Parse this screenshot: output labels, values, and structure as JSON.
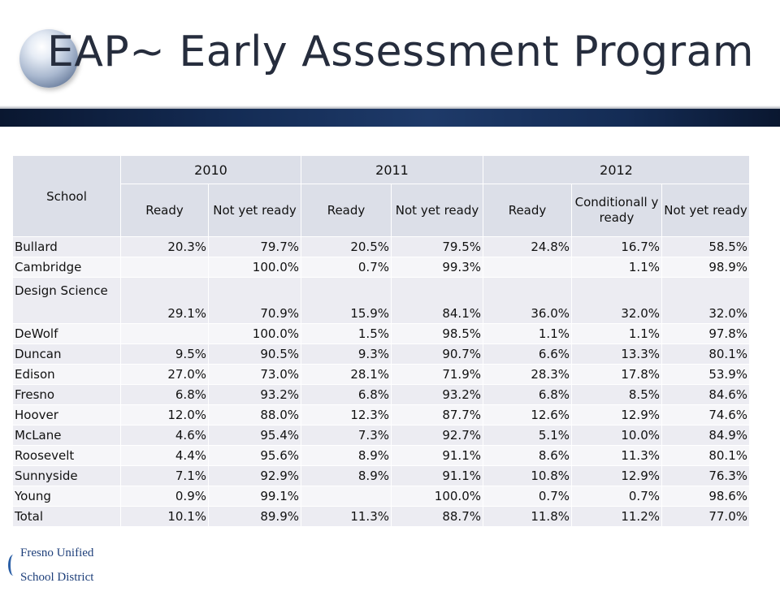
{
  "title": "EAP~ Early Assessment Program",
  "table": {
    "school_header": "School",
    "years": [
      "2010",
      "2011",
      "2012"
    ],
    "subheaders": [
      "Ready",
      "Not yet ready",
      "Ready",
      "Not yet ready",
      "Ready",
      "Conditionall y ready",
      "Not yet ready"
    ],
    "rows": [
      {
        "school": "Bullard",
        "values": [
          "20.3%",
          "79.7%",
          "20.5%",
          "79.5%",
          "24.8%",
          "16.7%",
          "58.5%"
        ]
      },
      {
        "school": "Cambridge",
        "values": [
          "",
          "100.0%",
          "0.7%",
          "99.3%",
          "",
          "1.1%",
          "98.9%"
        ]
      },
      {
        "school": "Design Science",
        "values": [
          "29.1%",
          "70.9%",
          "15.9%",
          "84.1%",
          "36.0%",
          "32.0%",
          "32.0%"
        ]
      },
      {
        "school": "DeWolf",
        "values": [
          "",
          "100.0%",
          "1.5%",
          "98.5%",
          "1.1%",
          "1.1%",
          "97.8%"
        ]
      },
      {
        "school": "Duncan",
        "values": [
          "9.5%",
          "90.5%",
          "9.3%",
          "90.7%",
          "6.6%",
          "13.3%",
          "80.1%"
        ]
      },
      {
        "school": "Edison",
        "values": [
          "27.0%",
          "73.0%",
          "28.1%",
          "71.9%",
          "28.3%",
          "17.8%",
          "53.9%"
        ]
      },
      {
        "school": "Fresno",
        "values": [
          "6.8%",
          "93.2%",
          "6.8%",
          "93.2%",
          "6.8%",
          "8.5%",
          "84.6%"
        ]
      },
      {
        "school": "Hoover",
        "values": [
          "12.0%",
          "88.0%",
          "12.3%",
          "87.7%",
          "12.6%",
          "12.9%",
          "74.6%"
        ]
      },
      {
        "school": "McLane",
        "values": [
          "4.6%",
          "95.4%",
          "7.3%",
          "92.7%",
          "5.1%",
          "10.0%",
          "84.9%"
        ]
      },
      {
        "school": "Roosevelt",
        "values": [
          "4.4%",
          "95.6%",
          "8.9%",
          "91.1%",
          "8.6%",
          "11.3%",
          "80.1%"
        ]
      },
      {
        "school": "Sunnyside",
        "values": [
          "7.1%",
          "92.9%",
          "8.9%",
          "91.1%",
          "10.8%",
          "12.9%",
          "76.3%"
        ]
      },
      {
        "school": "Young",
        "values": [
          "0.9%",
          "99.1%",
          "",
          "100.0%",
          "0.7%",
          "0.7%",
          "98.6%"
        ]
      },
      {
        "school": "Total",
        "values": [
          "10.1%",
          "89.9%",
          "11.3%",
          "88.7%",
          "11.8%",
          "11.2%",
          "77.0%"
        ]
      }
    ]
  },
  "footer_logo": {
    "line1": "Fresno Unified",
    "line2": "School District"
  }
}
